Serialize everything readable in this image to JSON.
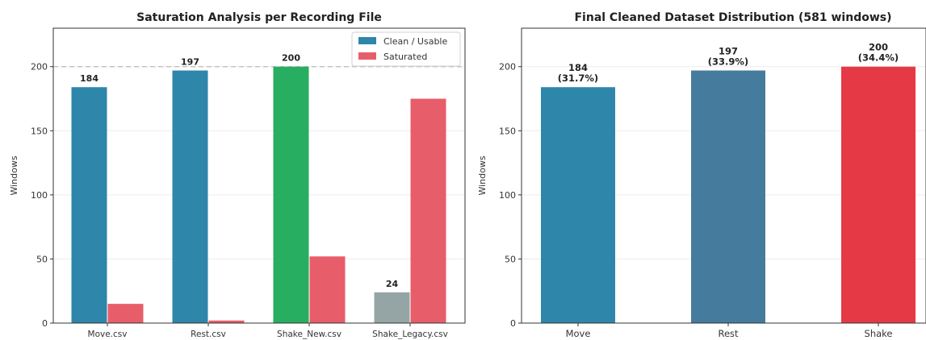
{
  "chart_data": [
    {
      "type": "bar",
      "title": "Saturation Analysis per Recording File",
      "xlabel": "",
      "ylabel": "Windows",
      "ylim": [
        0,
        230
      ],
      "yticks": [
        0,
        50,
        100,
        150,
        200
      ],
      "reference_line": {
        "value": 200,
        "style": "dashed",
        "color": "#bbbbbb"
      },
      "categories": [
        "Move.csv",
        "Rest.csv",
        "Shake_New.csv",
        "Shake_Legacy.csv"
      ],
      "series": [
        {
          "name": "Clean / Usable",
          "color": "#2e86ab",
          "values": [
            184,
            197,
            200,
            24
          ],
          "bar_colors": [
            "#2e86ab",
            "#2e86ab",
            "#27ae60",
            "#95a5a6"
          ],
          "data_labels": [
            "184",
            "197",
            "200",
            "24"
          ]
        },
        {
          "name": "Saturated",
          "color": "#e85d6a",
          "values": [
            15,
            2,
            52,
            175
          ]
        }
      ],
      "legend_position": "top-right",
      "grid": "horizontal"
    },
    {
      "type": "bar",
      "title": "Final Cleaned Dataset Distribution (581 windows)",
      "xlabel": "",
      "ylabel": "Windows",
      "ylim": [
        0,
        230
      ],
      "yticks": [
        0,
        50,
        100,
        150,
        200
      ],
      "categories": [
        "Move",
        "Rest",
        "Shake"
      ],
      "values": [
        184,
        197,
        200
      ],
      "bar_colors": [
        "#2e86ab",
        "#457b9d",
        "#e63946"
      ],
      "data_labels": [
        [
          "184",
          "(31.7%)"
        ],
        [
          "197",
          "(33.9%)"
        ],
        [
          "200",
          "(34.4%)"
        ]
      ],
      "grid": "horizontal"
    }
  ]
}
